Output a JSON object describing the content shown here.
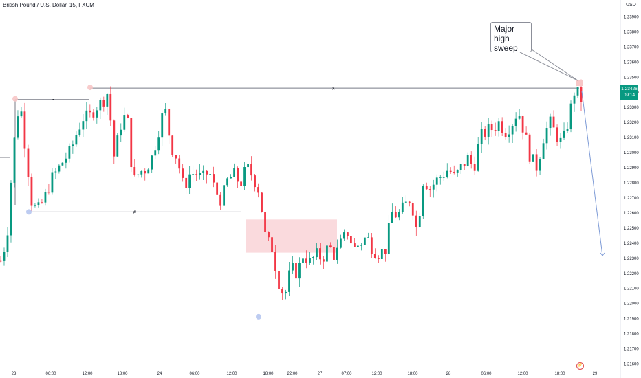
{
  "header": {
    "symbol_title": "British Pound / U.S. Dollar, 15, FXCM",
    "currency": "USD"
  },
  "price_tag": {
    "price": "1.23426",
    "countdown": "09:14"
  },
  "callout": {
    "line1": "Major",
    "line2": "high",
    "line3": "sweep"
  },
  "markers": {
    "x_label": "x",
    "hash_label": "#",
    "dot_label": "•",
    "check_label": "✓"
  },
  "flag_icon": "lightning-icon",
  "colors": {
    "up": "#089981",
    "down": "#f23645",
    "zone": "#f9d6d9",
    "line": "#787b86",
    "arrow": "#7e9bd6"
  },
  "chart_data": {
    "type": "candlestick",
    "title": "British Pound / U.S. Dollar, 15, FXCM",
    "ylim": [
      1.2155,
      1.2405
    ],
    "y_ticks": [
      "1.23900",
      "1.23800",
      "1.23700",
      "1.23600",
      "1.23500",
      "1.23400",
      "1.23300",
      "1.23200",
      "1.23100",
      "1.23000",
      "1.22900",
      "1.22800",
      "1.22700",
      "1.22600",
      "1.22500",
      "1.22400",
      "1.22300",
      "1.22200",
      "1.22100",
      "1.22000",
      "1.21900",
      "1.21800",
      "1.21700",
      "1.21600"
    ],
    "x_ticks": [
      "23",
      "06:00",
      "12:00",
      "18:00",
      "24",
      "06:00",
      "12:00",
      "18:00",
      "22:00",
      "27",
      "07:00",
      "12:00",
      "18:00",
      "28",
      "06:00",
      "12:00",
      "18:00",
      "29"
    ],
    "annotations": {
      "major_high": 1.23426,
      "resistance_x": 1.23426,
      "upper_level": 1.2335,
      "support_level": 1.22605,
      "zone": [
        1.22335,
        1.22555
      ],
      "low_dot": 1.2191,
      "target": 1.22315
    },
    "close_path": [
      1.2228,
      1.2244,
      1.2302,
      1.2336,
      1.23,
      1.2264,
      1.2262,
      1.227,
      1.2282,
      1.2288,
      1.2295,
      1.23,
      1.2312,
      1.2323,
      1.2323,
      1.233,
      1.2333,
      1.234,
      1.2296,
      1.2318,
      1.2326,
      1.228,
      1.2287,
      1.2289,
      1.2297,
      1.2314,
      1.233,
      1.2304,
      1.2296,
      1.2276,
      1.2286,
      1.2286,
      1.2282,
      1.2288,
      1.2274,
      1.2268,
      1.2282,
      1.2285,
      1.2279,
      1.229,
      1.2284,
      1.2274,
      1.2242,
      1.2237,
      1.2215,
      1.2204,
      1.2223,
      1.222,
      1.2233,
      1.2227,
      1.2232,
      1.223,
      1.2238,
      1.2231,
      1.224,
      1.2247,
      1.2236,
      1.224,
      1.2244,
      1.2236,
      1.2233,
      1.2236,
      1.226,
      1.2258,
      1.2264,
      1.227,
      1.2247,
      1.2283,
      1.2276,
      1.2281,
      1.2285,
      1.2289,
      1.2283,
      1.229,
      1.2296,
      1.229,
      1.231,
      1.2314,
      1.2316,
      1.232,
      1.2314,
      1.2319,
      1.2328,
      1.2313,
      1.2296,
      1.229,
      1.231,
      1.232,
      1.2312,
      1.2305,
      1.2322,
      1.2342,
      1.2335
    ]
  }
}
